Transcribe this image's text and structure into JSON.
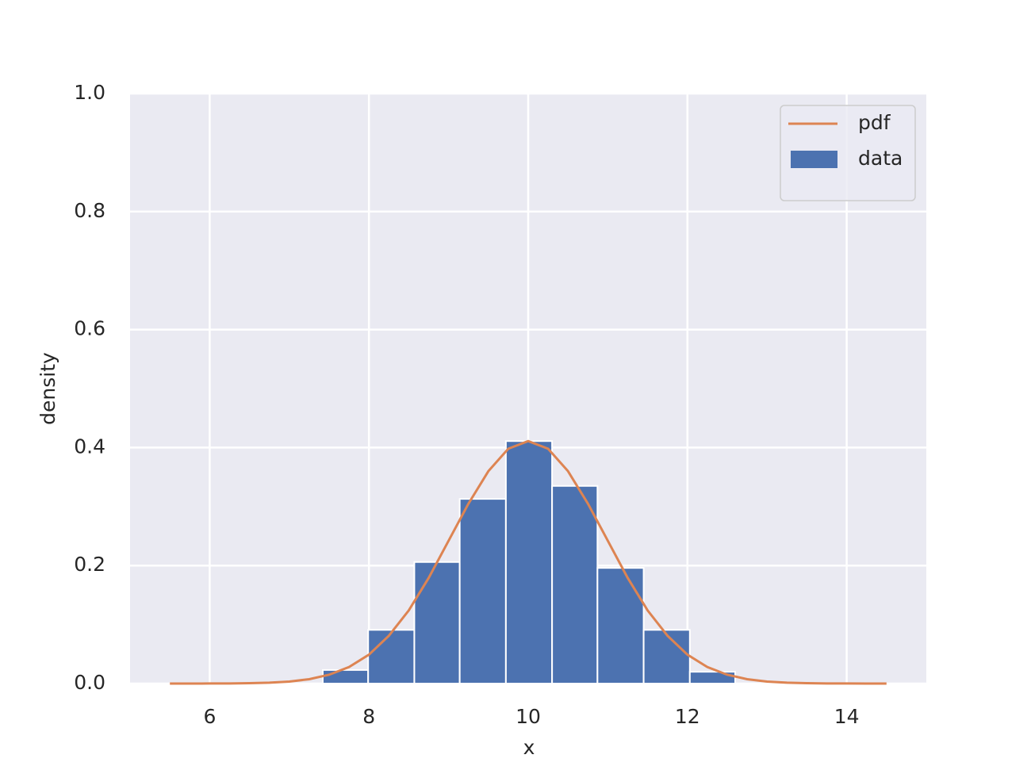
{
  "chart_data": {
    "type": "histogram",
    "xlabel": "x",
    "ylabel": "density",
    "xlim": [
      5,
      15
    ],
    "ylim": [
      0,
      1
    ],
    "xticks": [
      6,
      8,
      10,
      12,
      14
    ],
    "yticks": [
      {
        "value": 0,
        "label": "0.0"
      },
      0.2,
      0.4,
      0.6,
      0.8,
      {
        "value": 1,
        "label": "1.0"
      }
    ],
    "grid": true,
    "legend": "upper right",
    "series": [
      {
        "name": "pdf",
        "type": "line",
        "color": "#dd8452",
        "x": [
          5.5,
          5.75,
          6,
          6.25,
          6.5,
          6.75,
          7,
          7.25,
          7.5,
          7.75,
          8,
          8.25,
          8.5,
          8.75,
          9,
          9.25,
          9.5,
          9.75,
          10,
          10.25,
          10.5,
          10.75,
          11,
          11.25,
          11.5,
          11.75,
          12,
          12.25,
          12.5,
          12.75,
          13,
          13.25,
          13.5,
          13.75,
          14,
          14.25,
          14.5
        ],
        "values": [
          0,
          0,
          0.0001,
          0.0002,
          0.0006,
          0.0015,
          0.0034,
          0.0074,
          0.015,
          0.028,
          0.049,
          0.081,
          0.124,
          0.179,
          0.242,
          0.305,
          0.36,
          0.398,
          0.411,
          0.398,
          0.36,
          0.305,
          0.242,
          0.179,
          0.124,
          0.081,
          0.049,
          0.028,
          0.015,
          0.0074,
          0.0034,
          0.0015,
          0.0006,
          0.0002,
          0.0001,
          0,
          0
        ]
      },
      {
        "name": "data",
        "type": "histogram",
        "color": "#4c72b0",
        "bins": [
          7.42,
          7.99,
          8.57,
          9.14,
          9.72,
          10.3,
          10.87,
          11.45,
          12.03,
          12.6
        ],
        "values": [
          0.023,
          0.091,
          0.206,
          0.313,
          0.411,
          0.335,
          0.196,
          0.091,
          0.02
        ]
      }
    ]
  }
}
